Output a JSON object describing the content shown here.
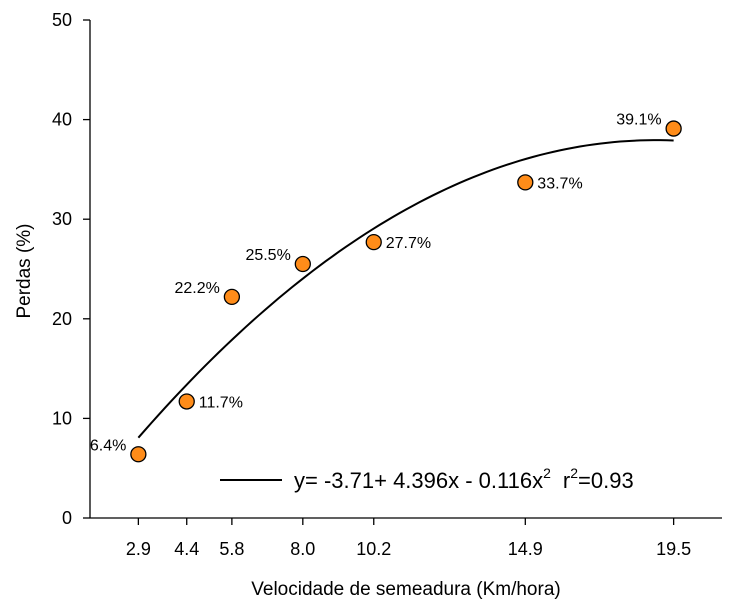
{
  "chart_data": {
    "type": "scatter",
    "xlabel": "Velocidade de semeadura (Km/hora)",
    "ylabel": "Perdas (%)",
    "xlim": [
      1.4,
      21.0
    ],
    "ylim": [
      0,
      50
    ],
    "x_ticks": [
      2.9,
      4.4,
      5.8,
      8.0,
      10.2,
      14.9,
      19.5
    ],
    "x_tick_labels": [
      "2.9",
      "4.4",
      "5.8",
      "8.0",
      "10.2",
      "14.9",
      "19.5"
    ],
    "y_ticks": [
      0,
      10,
      20,
      30,
      40,
      50
    ],
    "y_tick_labels": [
      "0",
      "10",
      "20",
      "30",
      "40",
      "50"
    ],
    "grid": false,
    "points": [
      {
        "x": 2.9,
        "y": 6.4,
        "label": "6.4%",
        "label_side": "left"
      },
      {
        "x": 4.4,
        "y": 11.7,
        "label": "11.7%",
        "label_side": "right"
      },
      {
        "x": 5.8,
        "y": 22.2,
        "label": "22.2%",
        "label_side": "left"
      },
      {
        "x": 8.0,
        "y": 25.5,
        "label": "25.5%",
        "label_side": "left"
      },
      {
        "x": 10.2,
        "y": 27.7,
        "label": "27.7%",
        "label_side": "right"
      },
      {
        "x": 14.9,
        "y": 33.7,
        "label": "33.7%",
        "label_side": "right"
      },
      {
        "x": 19.5,
        "y": 39.1,
        "label": "39.1%",
        "label_side": "left"
      }
    ],
    "fit": {
      "intercept": -3.71,
      "b1": 4.396,
      "b2": -0.116,
      "x_range": [
        2.9,
        19.5
      ]
    },
    "legend": {
      "equation_main": "y= -3.71+ 4.396x - 0.116x",
      "equation_exp": "2",
      "r_label": "r",
      "r_exp": "2",
      "r_value": "=0.93",
      "placement": "bottom-right"
    },
    "colors": {
      "marker_fill": "#ff8c19",
      "marker_stroke": "#000000",
      "curve": "#000000"
    }
  }
}
